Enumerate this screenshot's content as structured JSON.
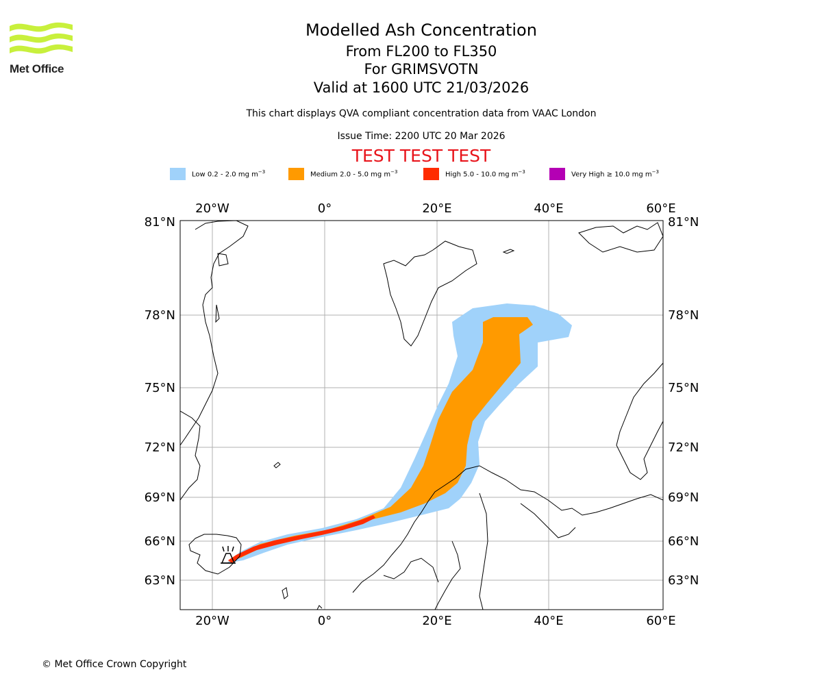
{
  "logo": {
    "brand": "Met Office",
    "color": "#c8f03c"
  },
  "titles": {
    "main": "Modelled Ash Concentration",
    "levels": "From FL200 to FL350",
    "volcano": "For GRIMSVOTN",
    "valid": "Valid at 1600 UTC 21/03/2026",
    "compliance": "This chart displays QVA compliant concentration data from VAAC London",
    "issue": "Issue Time: 2200 UTC 20 Mar 2026",
    "test": "TEST TEST TEST"
  },
  "legend": [
    {
      "label": "Low 0.2 - 2.0 mg m",
      "exp": "−3",
      "color": "#a0d2fa"
    },
    {
      "label": "Medium 2.0 - 5.0 mg m",
      "exp": "−3",
      "color": "#ff9a00"
    },
    {
      "label": "High 5.0 - 10.0 mg m",
      "exp": "−3",
      "color": "#ff2c00"
    },
    {
      "label": "Very High  ≥  10.0 mg m",
      "exp": "−3",
      "color": "#b400b4"
    }
  ],
  "map": {
    "lon_ticks": [
      "20°W",
      "0°",
      "20°E",
      "40°E",
      "60°E"
    ],
    "lat_ticks": [
      "81°N",
      "78°N",
      "75°N",
      "72°N",
      "69°N",
      "66°N",
      "63°N"
    ],
    "colors": {
      "low": "#a0d2fa",
      "medium": "#ff9a00",
      "high": "#ff2c00",
      "grid": "#b0b0b0"
    }
  },
  "copyright": "© Met Office Crown Copyright"
}
